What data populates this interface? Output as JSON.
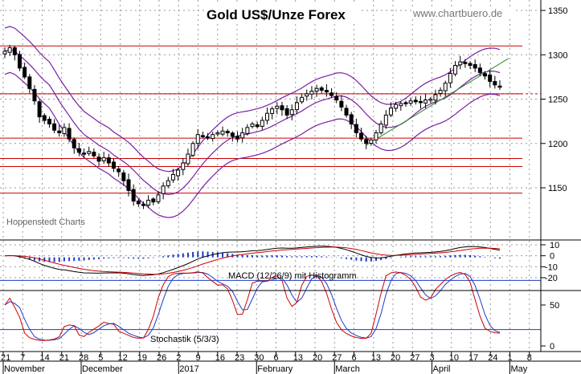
{
  "title": "Gold US$/Unze Forex",
  "watermark": "www.chartbuero.de",
  "source": "Hoppenstedt Charts",
  "colors": {
    "resistance": "#cc0000",
    "bands": "#7a1fa2",
    "trend": "#2e8b2e",
    "macd": "#000000",
    "signal": "#cc0000",
    "histogram": "#1e3cc8",
    "stoch_k": "#cc0000",
    "stoch_d": "#1e3cc8",
    "grid": "#999999",
    "candle": "#000000"
  },
  "chart_data": [
    {
      "type": "candlestick",
      "title": "Gold US$/Unze Forex",
      "y_ticks": [
        1150,
        1200,
        1250,
        1300,
        1350
      ],
      "ylim": [
        1110,
        1360
      ],
      "horizontal_lines": [
        1310,
        1256,
        1206,
        1183,
        1174,
        1144
      ],
      "dotted_line": 1256,
      "x_ticks": [
        "21",
        "7",
        "14",
        "21",
        "28",
        "5",
        "12",
        "19",
        "26",
        "2",
        "9",
        "16",
        "23",
        "30",
        "6",
        "13",
        "20",
        "27",
        "6",
        "13",
        "20",
        "27",
        "3",
        "10",
        "17",
        "24",
        "1",
        "8"
      ],
      "months": [
        "November",
        "December",
        "2017",
        "February",
        "March",
        "April",
        "May"
      ],
      "close": [
        1304,
        1308,
        1300,
        1285,
        1275,
        1262,
        1248,
        1230,
        1226,
        1222,
        1215,
        1212,
        1218,
        1205,
        1195,
        1190,
        1188,
        1191,
        1186,
        1180,
        1184,
        1178,
        1172,
        1168,
        1158,
        1147,
        1135,
        1132,
        1130,
        1136,
        1134,
        1142,
        1152,
        1158,
        1165,
        1170,
        1178,
        1188,
        1200,
        1210,
        1208,
        1206,
        1210,
        1212,
        1214,
        1212,
        1208,
        1205,
        1212,
        1218,
        1222,
        1219,
        1226,
        1234,
        1239,
        1242,
        1238,
        1232,
        1238,
        1246,
        1252,
        1256,
        1259,
        1262,
        1260,
        1258,
        1254,
        1249,
        1241,
        1232,
        1222,
        1212,
        1205,
        1200,
        1204,
        1212,
        1222,
        1232,
        1240,
        1244,
        1245,
        1246,
        1248,
        1247,
        1246,
        1249,
        1250,
        1255,
        1260,
        1268,
        1279,
        1288,
        1292,
        1290,
        1288,
        1285,
        1280,
        1276,
        1270,
        1266,
        1264
      ]
    },
    {
      "type": "line",
      "title": "MACD (12/26/9) mit Histogramm",
      "y_ticks": [
        10,
        0,
        -10,
        -20
      ],
      "ylim": [
        -24,
        15
      ],
      "series": []
    },
    {
      "type": "line",
      "title": "Stochastik (5/3/3)",
      "y_ticks": [
        0,
        50
      ],
      "ylim": [
        -5,
        105
      ],
      "horizontal_lines": [
        20,
        80
      ],
      "series": []
    }
  ]
}
